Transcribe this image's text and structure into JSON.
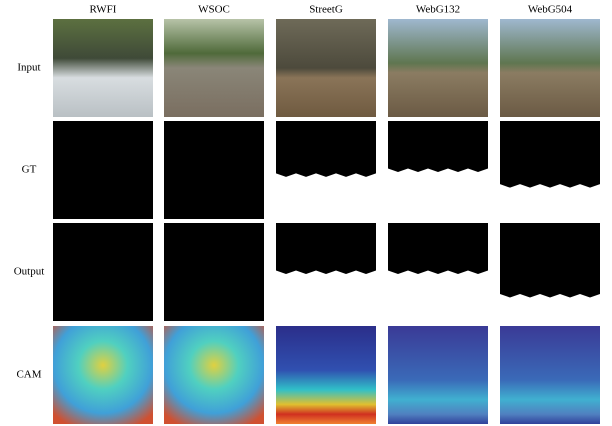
{
  "columns": [
    "RWFI",
    "WSOC",
    "StreetG",
    "WebG132",
    "WebG504"
  ],
  "rows": [
    "Input",
    "GT",
    "Output",
    "CAM"
  ]
}
